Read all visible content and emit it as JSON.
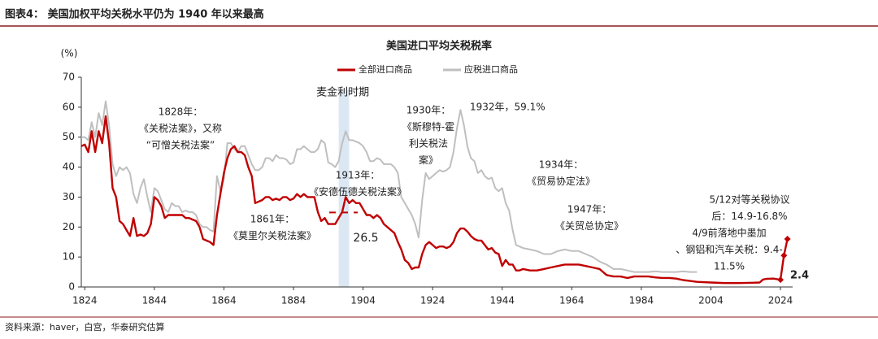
{
  "header": {
    "title": "图表4：  美国加权平均关税水平仍为 1940 年以来最高"
  },
  "footer": {
    "source": "资料来源：haver，白宫，华泰研究估算"
  },
  "chart_data": {
    "type": "line",
    "title": "美国进口平均关税税率",
    "y_label": "(%)",
    "xlim": [
      1823,
      2027.5
    ],
    "xticks": [
      1824,
      1844,
      1864,
      1884,
      1904,
      1924,
      1944,
      1964,
      1984,
      2004,
      2024
    ],
    "ylim": [
      0,
      70
    ],
    "yticks": [
      0,
      10,
      20,
      30,
      40,
      50,
      60,
      70
    ],
    "shade": {
      "range": [
        1897,
        1900
      ],
      "label": "麦金利时期"
    },
    "reference_line": 26.5,
    "x": [
      1823,
      1824,
      1825,
      1826,
      1827,
      1828,
      1829,
      1830,
      1831,
      1832,
      1833,
      1834,
      1835,
      1836,
      1837,
      1838,
      1839,
      1840,
      1841,
      1842,
      1843,
      1844,
      1845,
      1846,
      1847,
      1848,
      1849,
      1850,
      1851,
      1852,
      1853,
      1854,
      1855,
      1856,
      1857,
      1858,
      1859,
      1860,
      1861,
      1862,
      1863,
      1864,
      1865,
      1866,
      1867,
      1868,
      1869,
      1870,
      1871,
      1872,
      1873,
      1874,
      1875,
      1876,
      1877,
      1878,
      1879,
      1880,
      1881,
      1882,
      1883,
      1884,
      1885,
      1886,
      1887,
      1888,
      1889,
      1890,
      1891,
      1892,
      1893,
      1894,
      1895,
      1896,
      1897,
      1898,
      1899,
      1900,
      1901,
      1902,
      1903,
      1904,
      1905,
      1906,
      1907,
      1908,
      1909,
      1910,
      1911,
      1912,
      1913,
      1914,
      1915,
      1916,
      1917,
      1918,
      1919,
      1920,
      1921,
      1922,
      1923,
      1924,
      1925,
      1926,
      1927,
      1928,
      1929,
      1930,
      1931,
      1932,
      1933,
      1934,
      1935,
      1936,
      1937,
      1938,
      1939,
      1940,
      1941,
      1942,
      1943,
      1944,
      1945,
      1946,
      1947,
      1948,
      1949,
      1950,
      1952,
      1954,
      1956,
      1958,
      1960,
      1962,
      1964,
      1966,
      1968,
      1970,
      1972,
      1974,
      1976,
      1978,
      1980,
      1982,
      1984,
      1986,
      1988,
      1990,
      1992,
      1994,
      1996,
      1998,
      2000,
      2004,
      2008,
      2012,
      2016,
      2018,
      2019,
      2020,
      2022,
      2024,
      2025,
      2026
    ],
    "series": [
      {
        "name": "全部进口商品",
        "color": "#c00000",
        "values": [
          47,
          47.5,
          45,
          52,
          45,
          52,
          48,
          57,
          48,
          33,
          30,
          22,
          21,
          19,
          17,
          23,
          17,
          17.5,
          17,
          18,
          21,
          30,
          29,
          27,
          23,
          24,
          24,
          24,
          24,
          24,
          23,
          23,
          22.5,
          22,
          20,
          16,
          15.5,
          15,
          14,
          24,
          31,
          38,
          43,
          46,
          47,
          45,
          45,
          44,
          40,
          37,
          28,
          28.5,
          29,
          30,
          30,
          29,
          29.5,
          29,
          30,
          30,
          29,
          29.5,
          31,
          30,
          31,
          30,
          30,
          30,
          25,
          22,
          23,
          21,
          21,
          21,
          23,
          25,
          30,
          28,
          29,
          28,
          28,
          26,
          24,
          24,
          23,
          24,
          23,
          21,
          20,
          19,
          18,
          15,
          12.5,
          9,
          8,
          6,
          6.5,
          6.5,
          11,
          14,
          15,
          14,
          13,
          13.5,
          13.5,
          13,
          13.5,
          15,
          18,
          19.5,
          19.5,
          18.5,
          17,
          16,
          15.5,
          15.5,
          14,
          12.5,
          13,
          11.5,
          11,
          7,
          9,
          7.5,
          7.5,
          5.5,
          5.5,
          6,
          5.5,
          5.5,
          6,
          6.5,
          7,
          7.5,
          7.5,
          7.5,
          7,
          6.5,
          6,
          4,
          3.5,
          3.5,
          3,
          3.5,
          3.5,
          3.5,
          3.2,
          3,
          3,
          2.8,
          2.3,
          2,
          1.7,
          1.5,
          1.3,
          1.3,
          1.4,
          1.5,
          2.5,
          2.7,
          2.8,
          2.4,
          10.5,
          16
        ]
      },
      {
        "name": "应税进口商品",
        "color": "#bfbfbf",
        "values": [
          50,
          50,
          49,
          55,
          50,
          58,
          54,
          62,
          54,
          41,
          37,
          40,
          39,
          40,
          38,
          31,
          28,
          33,
          36,
          30,
          25,
          33,
          32,
          29,
          26,
          25,
          28,
          27,
          27,
          25,
          25.5,
          25,
          25,
          24,
          21,
          20,
          20,
          19,
          18.5,
          37,
          32,
          36,
          48,
          48,
          46,
          45,
          47,
          47,
          44,
          41,
          39,
          39,
          40,
          43,
          43,
          42,
          44,
          43,
          43,
          42.5,
          41,
          41.5,
          46,
          46,
          47,
          46,
          45,
          45,
          46,
          49,
          48,
          41.5,
          41,
          40,
          42,
          48,
          52,
          49,
          49,
          48.5,
          48,
          47,
          45,
          42,
          42,
          43,
          42.5,
          41,
          41,
          41,
          40,
          38,
          30,
          28,
          26,
          24,
          21,
          16.5,
          29,
          38,
          36,
          37,
          38,
          39,
          38.5,
          39,
          40,
          45,
          53,
          59.1,
          54,
          47,
          43,
          42,
          38,
          39,
          37,
          36,
          36.5,
          33,
          32,
          33,
          28,
          25.5,
          19,
          14,
          13.5,
          13,
          12.5,
          12,
          11,
          11,
          12,
          12.5,
          12,
          12,
          11,
          10,
          8.5,
          7.5,
          6,
          6,
          5.5,
          5,
          5,
          5,
          5.2,
          5,
          5,
          5,
          5.2,
          5,
          5,
          null,
          null,
          null,
          null,
          null,
          null,
          null,
          null,
          null,
          null,
          null
        ]
      }
    ],
    "annotations": [
      {
        "lines": [
          "1828年：",
          "《关税法案》，又称",
          "“可憎关税法案”"
        ],
        "color": "#000000"
      },
      {
        "lines": [
          "1861年：",
          "《莫里尔关税法案》"
        ],
        "color": "#000000"
      },
      {
        "lines": [
          "1913年：",
          "《安德伍德关税法案》"
        ],
        "color": "#000000"
      },
      {
        "lines": [
          "1930年：",
          "《斯穆特-霍",
          "利关税法",
          "案》"
        ],
        "color": "#000000"
      },
      {
        "lines": [
          "1932年，59.1%"
        ],
        "color": "#000000"
      },
      {
        "lines": [
          "1934年：",
          "《贸易协定法》"
        ],
        "color": "#000000"
      },
      {
        "lines": [
          "1947年：",
          "《关贸总协定》"
        ],
        "color": "#000000"
      },
      {
        "lines": [
          "5/12对等关税协议",
          "后：14.9-16.8%"
        ],
        "color": "#c00000"
      },
      {
        "lines": [
          "4/9前落地中墨加",
          "、钢铝和汽车关税：9.4-",
          "11.5%"
        ],
        "color": "#c00000"
      }
    ]
  }
}
